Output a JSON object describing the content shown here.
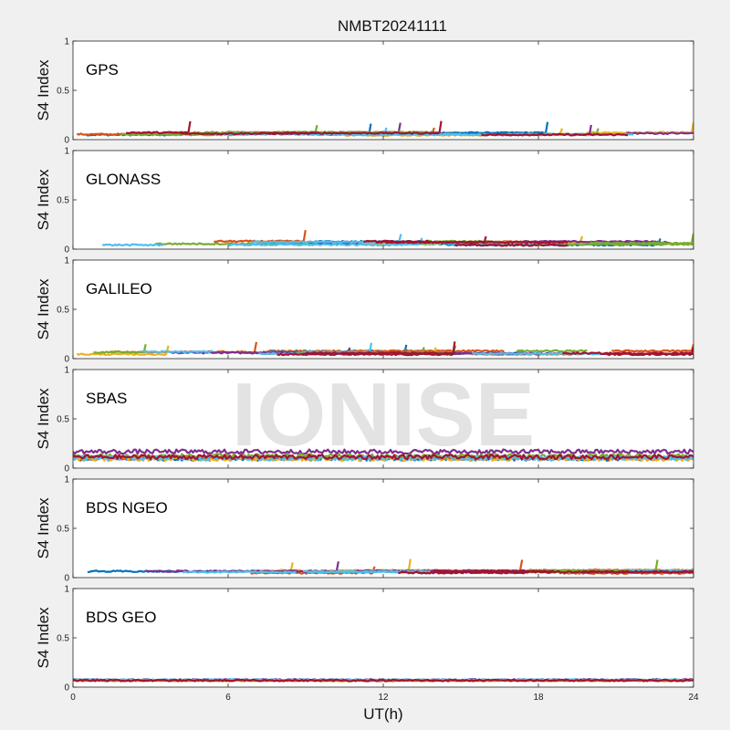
{
  "chart_data": {
    "type": "line",
    "title": "NMBT20241111",
    "xlabel": "UT(h)",
    "ylabel": "S4 Index",
    "xlim": [
      0,
      24
    ],
    "ylim": [
      0,
      1
    ],
    "x_ticks": [
      "0",
      "6",
      "12",
      "18",
      "24"
    ],
    "y_ticks": [
      "0",
      "0.5",
      "1"
    ],
    "watermark": "IONISE",
    "series_colors": [
      "#0072BD",
      "#D95319",
      "#EDB120",
      "#7E2F8E",
      "#77AC30",
      "#4DBEEE",
      "#A2142F"
    ],
    "panels": [
      {
        "label": "GPS",
        "baseline": 0.06,
        "spread": 0.03,
        "ragged": 0.0
      },
      {
        "label": "GLONASS",
        "baseline": 0.06,
        "spread": 0.04,
        "ragged": 0.0
      },
      {
        "label": "GALILEO",
        "baseline": 0.06,
        "spread": 0.04,
        "ragged": 0.0
      },
      {
        "label": "SBAS",
        "baseline": 0.11,
        "spread": 0.04,
        "ragged": 0.03
      },
      {
        "label": "BDS NGEO",
        "baseline": 0.06,
        "spread": 0.03,
        "ragged": 0.0
      },
      {
        "label": "BDS GEO",
        "baseline": 0.07,
        "spread": 0.01,
        "ragged": 0.0
      }
    ],
    "grid": false
  }
}
